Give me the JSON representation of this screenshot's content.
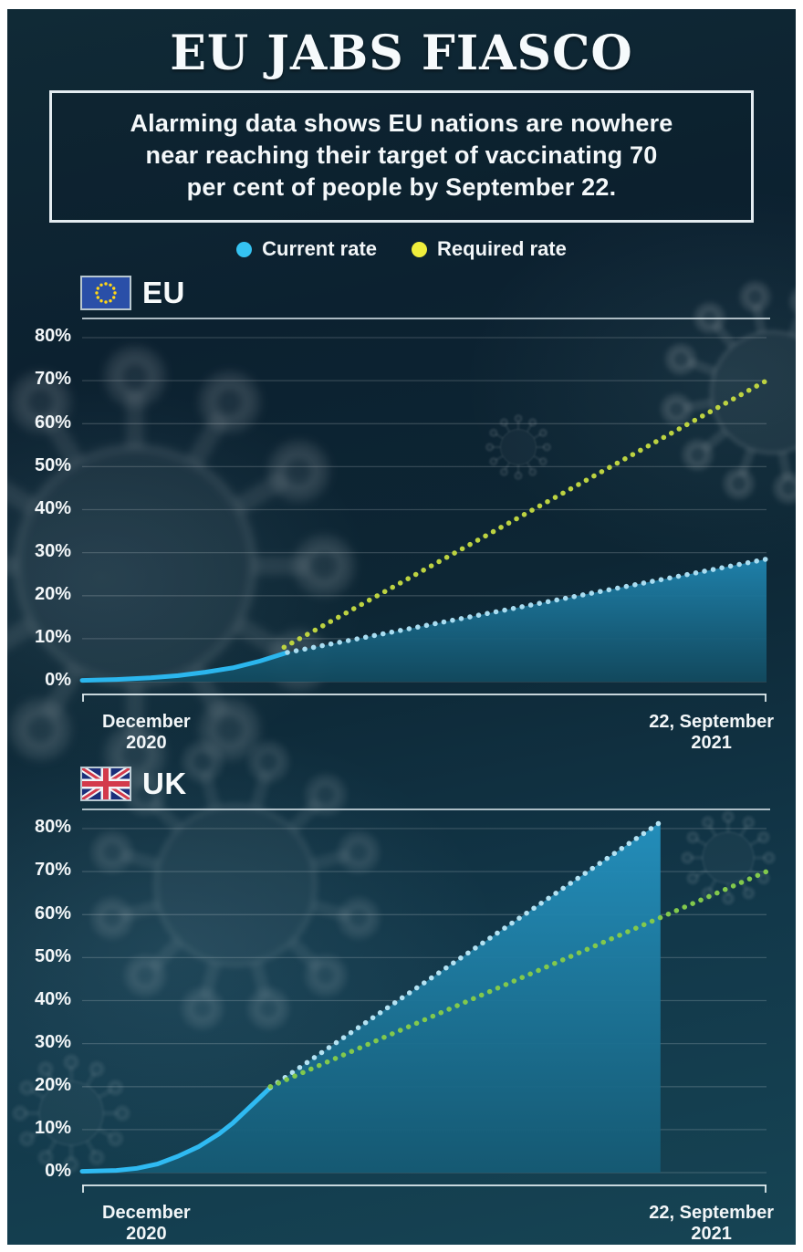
{
  "header": {
    "title": "EU JABS FIASCO",
    "subtitle": "Alarming data shows EU nations are nowhere\nnear reaching their target of vaccinating 70\nper cent of people by September 22."
  },
  "legend": [
    {
      "label": "Current rate",
      "color": "#35c3f2",
      "icon": "current-rate-dot-icon"
    },
    {
      "label": "Required rate",
      "color": "#efee3c",
      "icon": "required-rate-dot-icon"
    }
  ],
  "icons": {
    "eu_flag": "eu-flag-icon",
    "uk_flag": "uk-flag-icon",
    "background": "virus-watermark"
  },
  "colors": {
    "background_top": "#0c2130",
    "background_bottom": "#164454",
    "text": "#f4f8fa",
    "gridline": "rgba(255,255,255,0.17)"
  },
  "chart_data": [
    {
      "type": "area",
      "title": "EU",
      "flag_icon": "eu-flag-icon",
      "ylim": [
        0,
        85
      ],
      "grid": true,
      "yticks": [
        "80%",
        "70%",
        "60%",
        "50%",
        "40%",
        "30%",
        "20%",
        "10%",
        "0%"
      ],
      "x_labels": [
        {
          "lines": [
            "December",
            "2020"
          ],
          "align": "left"
        },
        {
          "lines": [
            "22, September",
            "2021"
          ],
          "align": "right"
        }
      ],
      "area_gradient": [
        "#1f84af",
        "#124a5f"
      ],
      "series": [
        {
          "name": "Current rate (actual)",
          "style": "solid",
          "color": "#2bb6ee",
          "width": 5,
          "fill_under": true,
          "points": [
            [
              0,
              0.3
            ],
            [
              0.05,
              0.5
            ],
            [
              0.1,
              0.9
            ],
            [
              0.14,
              1.4
            ],
            [
              0.18,
              2.2
            ],
            [
              0.22,
              3.2
            ],
            [
              0.26,
              4.8
            ],
            [
              0.3,
              6.8
            ]
          ]
        },
        {
          "name": "Current rate (projected)",
          "style": "dotted",
          "color": "#a9ddf1",
          "width": 5.5,
          "fill_under": true,
          "points": [
            [
              0.3,
              6.8
            ],
            [
              1,
              28.5
            ]
          ]
        },
        {
          "name": "Required rate",
          "style": "dotted",
          "color": "#bdd341",
          "width": 5.5,
          "fill_under": false,
          "points": [
            [
              0.295,
              8
            ],
            [
              1,
              70
            ]
          ]
        }
      ]
    },
    {
      "type": "area",
      "title": "UK",
      "flag_icon": "uk-flag-icon",
      "ylim": [
        0,
        85
      ],
      "grid": true,
      "yticks": [
        "80%",
        "70%",
        "60%",
        "50%",
        "40%",
        "30%",
        "20%",
        "10%",
        "0%"
      ],
      "x_labels": [
        {
          "lines": [
            "December",
            "2020"
          ],
          "align": "left"
        },
        {
          "lines": [
            "22, September",
            "2021"
          ],
          "align": "right"
        }
      ],
      "area_gradient": [
        "#2492c0",
        "#155a74"
      ],
      "series": [
        {
          "name": "Current rate (actual)",
          "style": "solid",
          "color": "#2fbaf2",
          "width": 5,
          "fill_under": true,
          "points": [
            [
              0,
              0.3
            ],
            [
              0.05,
              0.5
            ],
            [
              0.08,
              1
            ],
            [
              0.11,
              2
            ],
            [
              0.14,
              3.8
            ],
            [
              0.17,
              6
            ],
            [
              0.2,
              9
            ],
            [
              0.22,
              11.5
            ],
            [
              0.24,
              14.5
            ],
            [
              0.26,
              17.5
            ],
            [
              0.275,
              19.8
            ]
          ]
        },
        {
          "name": "Current rate (projected)",
          "style": "dotted",
          "color": "#b4e2f2",
          "width": 5.5,
          "fill_under": true,
          "points": [
            [
              0.275,
              19.8
            ],
            [
              0.845,
              81.5
            ]
          ]
        },
        {
          "name": "Required rate",
          "style": "dotted",
          "color": "#82c94c",
          "width": 5.5,
          "fill_under": false,
          "points": [
            [
              0.275,
              20
            ],
            [
              1,
              70
            ]
          ]
        }
      ]
    }
  ]
}
